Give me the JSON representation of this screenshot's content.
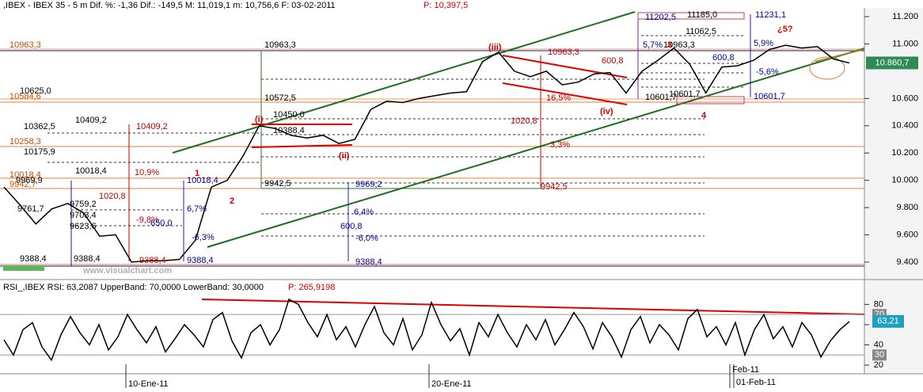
{
  "chart_data": [
    {
      "type": "line",
      "title": ",IBEX - IBEX 35 -  5 m Dif. %: -1,36 Dif.: -149,5 M: 11,019,1 m: 10,756,6 F: 03-02-2011",
      "title_price": "P: 10,397,5",
      "series": [
        {
          "color": "#000000",
          "values": [
            9950,
            9820,
            9680,
            9790,
            9830,
            9760,
            9590,
            9600,
            9400,
            9410,
            9410,
            9420,
            9560,
            9950,
            10000,
            10180,
            10400,
            10380,
            10330,
            10310,
            10330,
            10270,
            10300,
            10520,
            10580,
            10570,
            10600,
            10620,
            10640,
            10650,
            10870,
            10940,
            10800,
            10760,
            10800,
            10700,
            10720,
            10780,
            10790,
            10640,
            10800,
            10880,
            10970,
            10850,
            10640,
            10830,
            10840,
            10880,
            10960,
            10990,
            10970,
            10980,
            10890,
            10860
          ]
        }
      ],
      "ylim": [
        9278,
        11264
      ],
      "yticks": [
        {
          "value": 9400,
          "label": "9.400"
        },
        {
          "value": 9600,
          "label": "9.600"
        },
        {
          "value": 9800,
          "label": "9.800"
        },
        {
          "value": 10000,
          "label": "10.000"
        },
        {
          "value": 10200,
          "label": "10.200"
        },
        {
          "value": 10400,
          "label": "10.400"
        },
        {
          "value": 10600,
          "label": "10.600"
        },
        {
          "value": 11000,
          "label": "11.000"
        },
        {
          "value": 11200,
          "label": "11.200"
        }
      ],
      "last_value": {
        "value": 10860.7,
        "label": "10.860,7"
      },
      "annotations": [
        "10963,3",
        "10625,0",
        "10584,6",
        "10362,5",
        "10409,2",
        "10409,2",
        "10258,3",
        "10175,9",
        "10018,4",
        "10018,4",
        "9969,9",
        "9942,7",
        "1020,8",
        "10,9%",
        "9761,7",
        "9759,2",
        "9703,4",
        "9623,6",
        "-9,8%",
        "650,0",
        "6,7%",
        "-6,3%",
        "10018,4",
        "9388,4",
        "9388,4",
        "9388,4",
        "9388,4",
        "10963,3",
        "10572,5",
        "10450,0",
        "10388,4",
        "9942,5",
        "9969,2",
        "9388,4",
        "6,4%",
        "600,8",
        "-6,0%",
        "1020,8",
        "3,3%",
        "9942,5",
        "10963,3",
        "600,8",
        "16,5%",
        "11202,5",
        "11185,0",
        "11062,5",
        "5,7%",
        "10963,3",
        "10601,7",
        "10601,7",
        "10601,7",
        "11231,1",
        "5,9%",
        "600,8",
        "-5,6%",
        "1",
        "2",
        "(i)",
        "(ii)",
        "(iii)",
        "(iv)",
        "3",
        "4",
        "¿5?",
        "www.visualchart.com"
      ]
    },
    {
      "type": "line",
      "title": "RSI_,IBEX RSI: 63,2087 UpperBand: 70,0000 LowerBand: 30,0000",
      "title_extra": "P: 265,9198",
      "series": [
        {
          "color": "#000000",
          "values": [
            45,
            30,
            55,
            62,
            38,
            25,
            50,
            68,
            52,
            40,
            60,
            35,
            48,
            70,
            55,
            42,
            58,
            33,
            46,
            60,
            50,
            38,
            65,
            72,
            44,
            27,
            52,
            60,
            40,
            55,
            85,
            80,
            62,
            48,
            70,
            45,
            58,
            38,
            60,
            78,
            52,
            40,
            66,
            35,
            50,
            82,
            60,
            44,
            56,
            30,
            62,
            48,
            70,
            52,
            38,
            60,
            45,
            65,
            40,
            55,
            72,
            58,
            36,
            62,
            48,
            28,
            55,
            68,
            42,
            60,
            50,
            35,
            66,
            75,
            48,
            58,
            40,
            62,
            30,
            55,
            70,
            46,
            58,
            38,
            62,
            50,
            28,
            44,
            55,
            63
          ]
        }
      ],
      "ylim": [
        13,
        103
      ],
      "yticks": [
        20,
        40,
        60,
        80
      ],
      "upper_band": 70,
      "lower_band": 30,
      "last_value": {
        "value": 63.21,
        "label": "63,21"
      },
      "date_labels": [
        "10-Ene-11",
        "20-Ene-11",
        "Feb-11",
        "01-Feb-11"
      ]
    }
  ]
}
